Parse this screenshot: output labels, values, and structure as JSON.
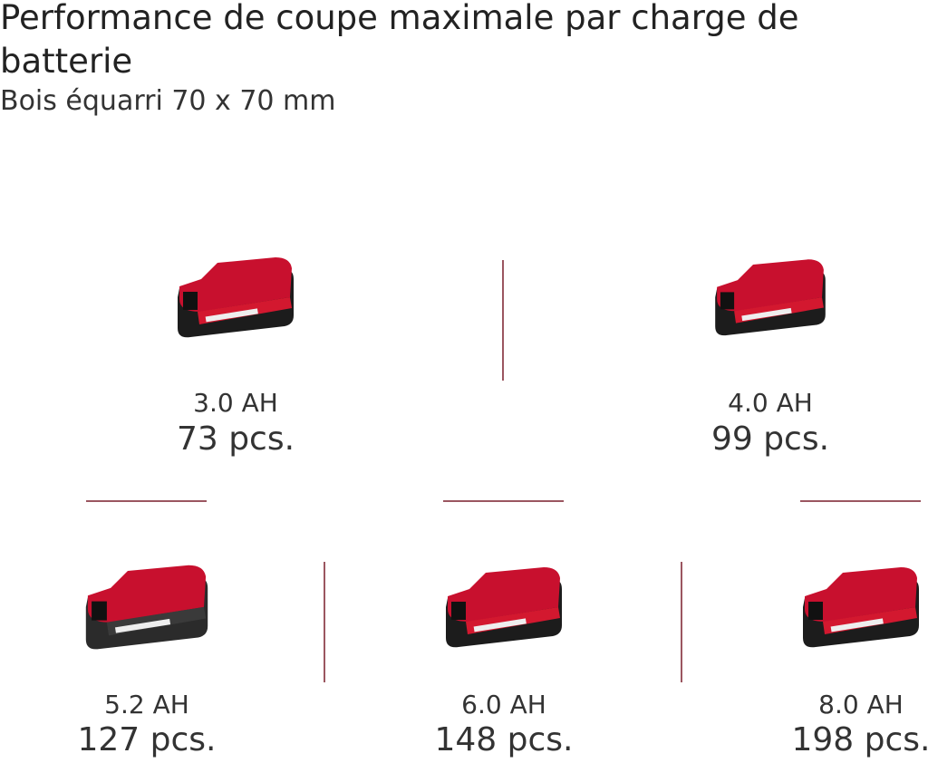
{
  "header": {
    "title": "Performance de coupe maximale par charge de batterie",
    "subtitle": "Bois équarri 70 x 70 mm"
  },
  "items": [
    {
      "capacity": "3.0 AH",
      "count": "73 pcs."
    },
    {
      "capacity": "4.0 AH",
      "count": "99 pcs."
    },
    {
      "capacity": "5.2 AH",
      "count": "127 pcs."
    },
    {
      "capacity": "6.0 AH",
      "count": "148 pcs."
    },
    {
      "capacity": "8.0 AH",
      "count": "198 pcs."
    }
  ]
}
